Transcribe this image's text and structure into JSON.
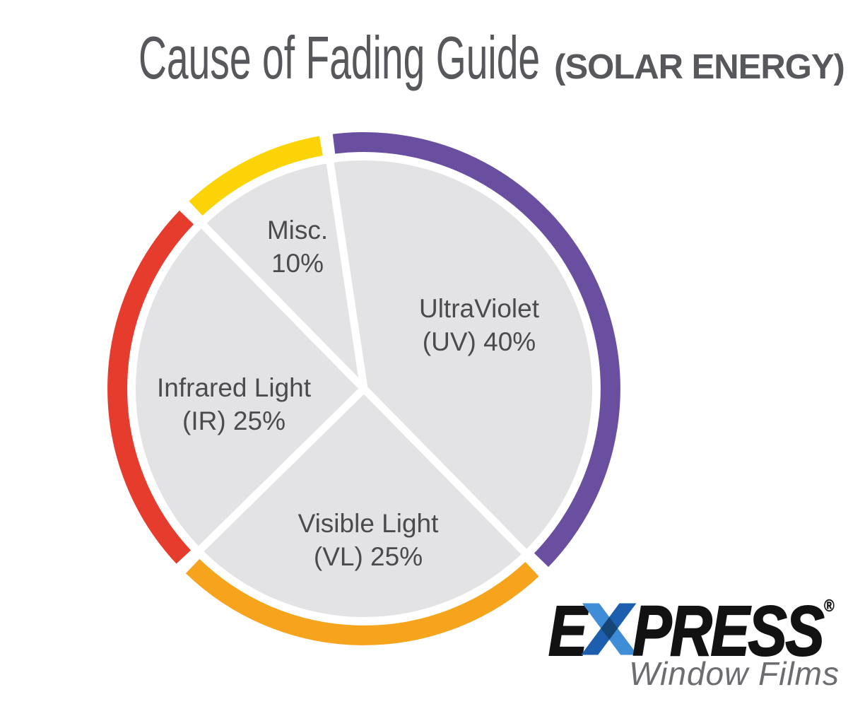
{
  "chart_data": {
    "type": "pie",
    "title": "Cause of Fading Guide",
    "subtitle": "(SOLAR ENERGY)",
    "title_color": "#57585B",
    "background": "#FFFFFF",
    "pie_fill": "#E3E3E5",
    "divider_color": "#FFFFFF",
    "label_color": "#4A4B4D",
    "start_angle_deg": -8.5,
    "direction": "clockwise",
    "legend_position": "none",
    "categories": [
      "UltraViolet (UV)",
      "Visible Light (VL)",
      "Infrared Light (IR)",
      "Misc."
    ],
    "values": [
      40,
      25,
      25,
      10
    ],
    "slices": [
      {
        "name": "UltraViolet (UV)",
        "value": 40,
        "percent": "40%",
        "ring_color": "#6A4FA1",
        "label_line1": "UltraViolet",
        "label_line2": "(UV) 40%"
      },
      {
        "name": "Visible Light (VL)",
        "value": 25,
        "percent": "25%",
        "ring_color": "#F6A41E",
        "label_line1": "Visible Light",
        "label_line2": "(VL) 25%"
      },
      {
        "name": "Infrared Light (IR)",
        "value": 25,
        "percent": "25%",
        "ring_color": "#E63C2E",
        "label_line1": "Infrared Light",
        "label_line2": "(IR) 25%"
      },
      {
        "name": "Misc.",
        "value": 10,
        "percent": "10%",
        "ring_color": "#FBD307",
        "label_line1": "Misc.",
        "label_line2": "10%"
      }
    ]
  },
  "logo": {
    "prefix": "E",
    "suffix": "PRESS",
    "registered": "®",
    "tagline": "Window Films",
    "text_color": "#121212",
    "tagline_color": "#6C6D70",
    "x_light_color": "#3E8DD6",
    "x_dark_color": "#1D5FAE",
    "x_overlap_color": "#164676"
  }
}
